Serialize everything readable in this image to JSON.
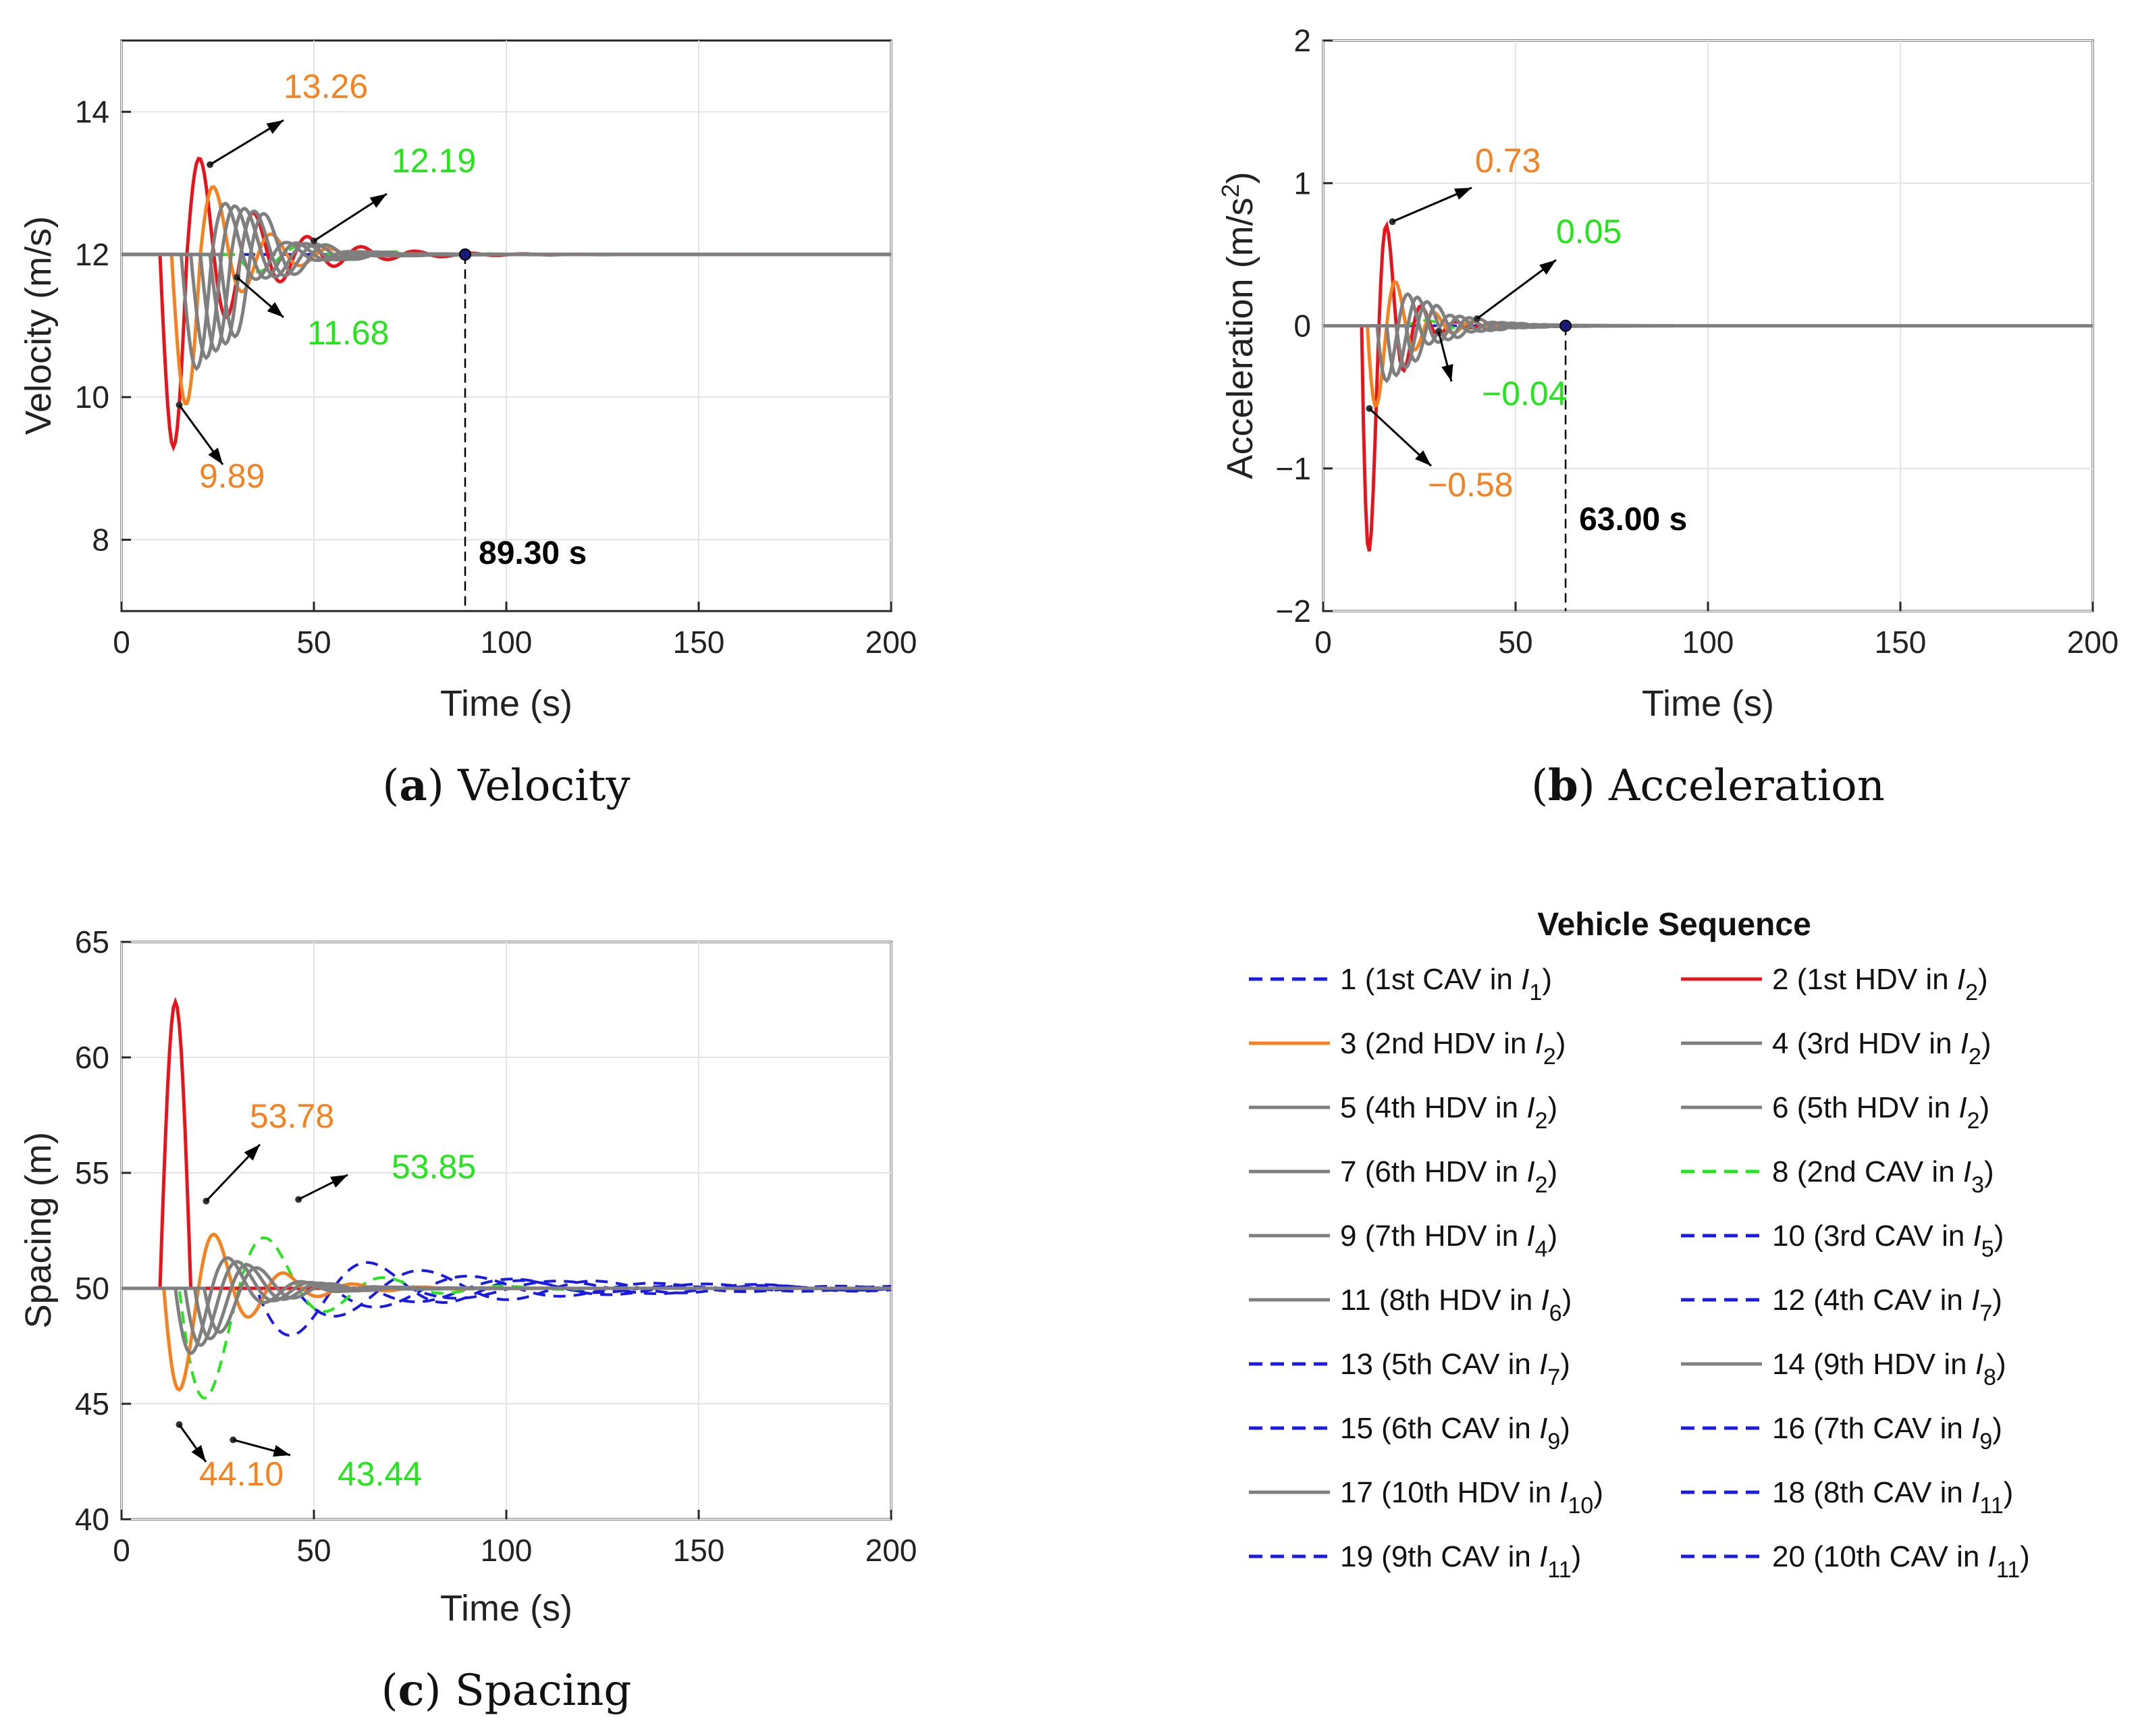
{
  "colors": {
    "red": "#e8141c",
    "orange": "#f5821f",
    "gray": "#7f7f7f",
    "green": "#22e61a",
    "blue": "#1a1ae6"
  },
  "chart_data": [
    {
      "id": "velocity",
      "type": "line",
      "caption_letter": "a",
      "caption_text": "Velocity",
      "xlabel": "Time (s)",
      "ylabel": "Velocity (m/s)",
      "xlim": [
        0,
        200
      ],
      "ylim": [
        7,
        15
      ],
      "xticks": [
        0,
        50,
        100,
        150,
        200
      ],
      "yticks": [
        8,
        10,
        12,
        14
      ],
      "ytick_labels": [
        "8",
        "10",
        "12",
        "14"
      ],
      "base": 12,
      "series": [
        {
          "name": "red",
          "shape": "veldip",
          "t0": 10,
          "amp": [
            2.7,
            1.65
          ],
          "T": 14,
          "decay": 0.06
        },
        {
          "name": "orange",
          "shape": "veldip",
          "t0": 13,
          "amp": [
            2.1,
            1.26
          ],
          "T": 15,
          "decay": 0.08
        },
        {
          "name": "gray1",
          "shape": "veldip",
          "t0": 15.5,
          "amp": [
            1.6,
            1.0
          ],
          "T": 16,
          "decay": 0.09
        },
        {
          "name": "gray2",
          "shape": "veldip",
          "t0": 18,
          "amp": [
            1.45,
            0.95
          ],
          "T": 16,
          "decay": 0.09
        },
        {
          "name": "gray3",
          "shape": "veldip",
          "t0": 20.5,
          "amp": [
            1.35,
            0.9
          ],
          "T": 16,
          "decay": 0.09
        },
        {
          "name": "gray4",
          "shape": "veldip",
          "t0": 23,
          "amp": [
            1.25,
            0.85
          ],
          "T": 16,
          "decay": 0.09
        },
        {
          "name": "gray5",
          "shape": "veldip",
          "t0": 25.5,
          "amp": [
            1.15,
            0.8
          ],
          "T": 16,
          "decay": 0.09
        }
      ],
      "annotations": [
        {
          "text": "13.26",
          "color": "orange",
          "px": [
            23,
            13.26
          ]
        },
        {
          "text": "9.89",
          "color": "orange",
          "px": [
            15,
            9.89
          ]
        },
        {
          "text": "12.19",
          "color": "green",
          "px": [
            50,
            12.19
          ]
        },
        {
          "text": "11.68",
          "color": "green",
          "px": [
            30,
            11.68
          ]
        }
      ],
      "marker": {
        "t": 89.3,
        "y": 12,
        "label": "89.30 s"
      }
    },
    {
      "id": "acceleration",
      "type": "line",
      "caption_letter": "b",
      "caption_text": "Acceleration",
      "xlabel": "Time (s)",
      "ylabel_main": "Acceleration (m/s",
      "ylabel_sup": "2",
      "ylabel_end": ")",
      "xlim": [
        0,
        200
      ],
      "ylim": [
        -2,
        2
      ],
      "xticks": [
        0,
        50,
        100,
        150,
        200
      ],
      "yticks": [
        -2,
        -1,
        0,
        1,
        2
      ],
      "ytick_labels": [
        "−2",
        "−1",
        "0",
        "1",
        "2"
      ],
      "base": 0,
      "annotations": [
        {
          "text": "0.73",
          "color": "orange",
          "px": [
            18,
            0.73
          ]
        },
        {
          "text": "−0.58",
          "color": "orange",
          "px": [
            12,
            -0.58
          ]
        },
        {
          "text": "0.05",
          "color": "green",
          "px": [
            40,
            0.05
          ]
        },
        {
          "text": "−0.04",
          "color": "green",
          "px": [
            30,
            -0.04
          ]
        }
      ],
      "marker": {
        "t": 63.0,
        "y": 0,
        "label": "63.00 s"
      }
    },
    {
      "id": "spacing",
      "type": "line",
      "caption_letter": "c",
      "caption_text": "Spacing",
      "xlabel": "Time (s)",
      "ylabel": "Spacing (m)",
      "xlim": [
        0,
        200
      ],
      "ylim": [
        40,
        65
      ],
      "xticks": [
        0,
        50,
        100,
        150,
        200
      ],
      "yticks": [
        40,
        45,
        50,
        55,
        60,
        65
      ],
      "ytick_labels": [
        "40",
        "45",
        "50",
        "55",
        "60",
        "65"
      ],
      "base": 50,
      "annotations": [
        {
          "text": "53.78",
          "color": "orange",
          "px": [
            22,
            53.78
          ]
        },
        {
          "text": "44.10",
          "color": "orange",
          "px": [
            15,
            44.1
          ]
        },
        {
          "text": "53.85",
          "color": "green",
          "px": [
            46,
            53.85
          ]
        },
        {
          "text": "43.44",
          "color": "green",
          "px": [
            29,
            43.44
          ]
        }
      ]
    }
  ],
  "legend": {
    "title": "Vehicle Sequence",
    "items": [
      {
        "label": "1 (1st CAV in ",
        "sub": "1",
        "close": ")",
        "color": "blue",
        "dash": true
      },
      {
        "label": "2 (1st HDV in ",
        "sub": "2",
        "close": ")",
        "color": "red",
        "dash": false
      },
      {
        "label": "3 (2nd HDV in ",
        "sub": "2",
        "close": ")",
        "color": "orange",
        "dash": false
      },
      {
        "label": "4 (3rd HDV in ",
        "sub": "2",
        "close": ")",
        "color": "gray",
        "dash": false
      },
      {
        "label": "5 (4th HDV in ",
        "sub": "2",
        "close": ")",
        "color": "gray",
        "dash": false
      },
      {
        "label": "6 (5th HDV in ",
        "sub": "2",
        "close": ")",
        "color": "gray",
        "dash": false
      },
      {
        "label": "7 (6th HDV in ",
        "sub": "2",
        "close": ")",
        "color": "gray",
        "dash": false
      },
      {
        "label": "8 (2nd CAV in ",
        "sub": "3",
        "close": ")",
        "color": "green",
        "dash": true
      },
      {
        "label": "9 (7th HDV in ",
        "sub": "4",
        "close": ")",
        "color": "gray",
        "dash": false
      },
      {
        "label": "10 (3rd CAV in ",
        "sub": "5",
        "close": ")",
        "color": "blue",
        "dash": true
      },
      {
        "label": "11 (8th HDV in ",
        "sub": "6",
        "close": ")",
        "color": "gray",
        "dash": false
      },
      {
        "label": "12 (4th CAV in ",
        "sub": "7",
        "close": ")",
        "color": "blue",
        "dash": true
      },
      {
        "label": "13 (5th CAV in ",
        "sub": "7",
        "close": ")",
        "color": "blue",
        "dash": true
      },
      {
        "label": "14 (9th HDV in ",
        "sub": "8",
        "close": ")",
        "color": "gray",
        "dash": false
      },
      {
        "label": "15 (6th CAV in ",
        "sub": "9",
        "close": ")",
        "color": "blue",
        "dash": true
      },
      {
        "label": "16 (7th CAV in ",
        "sub": "9",
        "close": ")",
        "color": "blue",
        "dash": true
      },
      {
        "label": "17 (10th HDV in ",
        "sub": "10",
        "close": ")",
        "color": "gray",
        "dash": false
      },
      {
        "label": "18 (8th CAV in ",
        "sub": "11",
        "close": ")",
        "color": "blue",
        "dash": true
      },
      {
        "label": "19 (9th CAV in ",
        "sub": "11",
        "close": ")",
        "color": "blue",
        "dash": true
      },
      {
        "label": "20 (10th CAV in ",
        "sub": "11",
        "close": ")",
        "color": "blue",
        "dash": true
      }
    ],
    "sub_letter": "I"
  }
}
